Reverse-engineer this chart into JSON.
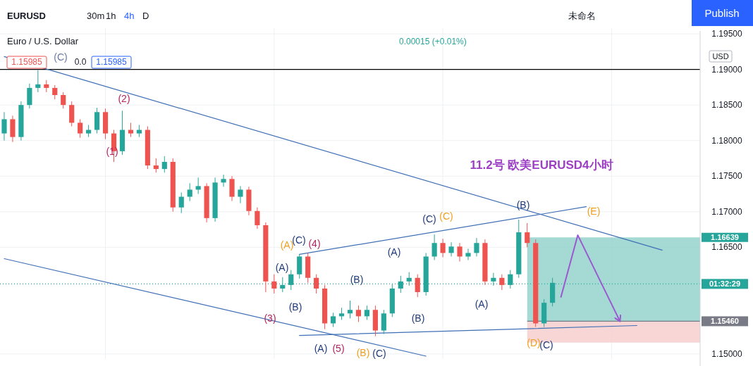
{
  "chart_data": {
    "type": "candlestick",
    "title": "11.2号 欧美EURUSD4小时",
    "categories": [
      null,
      null,
      null,
      null,
      null,
      null,
      null,
      null,
      null,
      null,
      null,
      null,
      null,
      null,
      null,
      null,
      null,
      null,
      null,
      null,
      null,
      null,
      null,
      null,
      null,
      null,
      null,
      null,
      null,
      null,
      null,
      null,
      null,
      null,
      null,
      null,
      null,
      null,
      null,
      null,
      null,
      null,
      null,
      null,
      null,
      null,
      null,
      null,
      null,
      null,
      null,
      null,
      null,
      null,
      null,
      null,
      null,
      null,
      null,
      null,
      null,
      null,
      null,
      null,
      null,
      null,
      null,
      null,
      null,
      null,
      null,
      null,
      null,
      null,
      null,
      null,
      null,
      null,
      null,
      null,
      null,
      null,
      null
    ],
    "ohlc": [
      [
        1.181,
        1.184,
        1.18,
        1.183
      ],
      [
        1.183,
        1.1835,
        1.1798,
        1.1805
      ],
      [
        1.1805,
        1.1855,
        1.18,
        1.185
      ],
      [
        1.185,
        1.188,
        1.1845,
        1.1874
      ],
      [
        1.1874,
        1.1899,
        1.1868,
        1.1879
      ],
      [
        1.1879,
        1.1885,
        1.1868,
        1.1874
      ],
      [
        1.1874,
        1.1878,
        1.1858,
        1.1864
      ],
      [
        1.1864,
        1.1868,
        1.1845,
        1.185
      ],
      [
        1.185,
        1.1855,
        1.182,
        1.1825
      ],
      [
        1.1825,
        1.183,
        1.1804,
        1.181
      ],
      [
        1.181,
        1.1822,
        1.1805,
        1.1815
      ],
      [
        1.1815,
        1.1846,
        1.181,
        1.184
      ],
      [
        1.184,
        1.1845,
        1.1802,
        1.181
      ],
      [
        1.181,
        1.1815,
        1.177,
        1.1785
      ],
      [
        1.1785,
        1.1842,
        1.178,
        1.1815
      ],
      [
        1.1815,
        1.1825,
        1.1805,
        1.181
      ],
      [
        1.181,
        1.1822,
        1.1805,
        1.1815
      ],
      [
        1.1815,
        1.182,
        1.176,
        1.1765
      ],
      [
        1.1765,
        1.1775,
        1.1755,
        1.176
      ],
      [
        1.176,
        1.1778,
        1.1755,
        1.177
      ],
      [
        1.177,
        1.1775,
        1.17,
        1.1706
      ],
      [
        1.1706,
        1.1727,
        1.1698,
        1.1721
      ],
      [
        1.1721,
        1.174,
        1.1715,
        1.1731
      ],
      [
        1.1731,
        1.1748,
        1.1725,
        1.1736
      ],
      [
        1.1736,
        1.174,
        1.1685,
        1.1691
      ],
      [
        1.1691,
        1.1748,
        1.1686,
        1.1741
      ],
      [
        1.1741,
        1.1752,
        1.1735,
        1.1746
      ],
      [
        1.1746,
        1.175,
        1.1715,
        1.1721
      ],
      [
        1.1721,
        1.1736,
        1.1712,
        1.1731
      ],
      [
        1.1731,
        1.1735,
        1.1695,
        1.1701
      ],
      [
        1.1701,
        1.1706,
        1.1676,
        1.1681
      ],
      [
        1.1681,
        1.1685,
        1.1587,
        1.1602
      ],
      [
        1.1602,
        1.1612,
        1.1585,
        1.1592
      ],
      [
        1.1592,
        1.1608,
        1.1587,
        1.1597
      ],
      [
        1.1597,
        1.1618,
        1.159,
        1.1612
      ],
      [
        1.1612,
        1.164,
        1.1606,
        1.1637
      ],
      [
        1.1637,
        1.1642,
        1.16,
        1.1607
      ],
      [
        1.1607,
        1.1612,
        1.1585,
        1.1592
      ],
      [
        1.1592,
        1.1597,
        1.1535,
        1.1543
      ],
      [
        1.1543,
        1.1558,
        1.1538,
        1.1553
      ],
      [
        1.1553,
        1.1565,
        1.1548,
        1.1557
      ],
      [
        1.1557,
        1.1575,
        1.155,
        1.1562
      ],
      [
        1.1562,
        1.1568,
        1.1545,
        1.1553
      ],
      [
        1.1553,
        1.1568,
        1.1548,
        1.1562
      ],
      [
        1.1562,
        1.1568,
        1.1525,
        1.1533
      ],
      [
        1.1533,
        1.1562,
        1.1528,
        1.1557
      ],
      [
        1.1557,
        1.1598,
        1.1552,
        1.1592
      ],
      [
        1.1592,
        1.161,
        1.1586,
        1.1602
      ],
      [
        1.1602,
        1.1615,
        1.1596,
        1.1607
      ],
      [
        1.1607,
        1.1612,
        1.158,
        1.1587
      ],
      [
        1.1587,
        1.1642,
        1.1582,
        1.1637
      ],
      [
        1.1637,
        1.1668,
        1.1632,
        1.1656
      ],
      [
        1.1656,
        1.1662,
        1.1636,
        1.1642
      ],
      [
        1.1642,
        1.1657,
        1.1637,
        1.1651
      ],
      [
        1.1651,
        1.1656,
        1.163,
        1.1637
      ],
      [
        1.1637,
        1.1648,
        1.1632,
        1.1642
      ],
      [
        1.1642,
        1.1663,
        1.1637,
        1.1656
      ],
      [
        1.1656,
        1.1661,
        1.1597,
        1.1602
      ],
      [
        1.1602,
        1.1614,
        1.1596,
        1.1607
      ],
      [
        1.1607,
        1.1612,
        1.159,
        1.1597
      ],
      [
        1.1597,
        1.1618,
        1.1592,
        1.1612
      ],
      [
        1.1612,
        1.1689,
        1.1607,
        1.1671
      ],
      [
        1.1671,
        1.1684,
        1.165,
        1.1656
      ],
      [
        1.1656,
        1.1661,
        1.1538,
        1.1543
      ],
      [
        1.1543,
        1.1577,
        1.1538,
        1.1572
      ],
      [
        1.1572,
        1.1607,
        1.1567,
        1.16
      ],
      null,
      null,
      null,
      null,
      null,
      null,
      null,
      null,
      null,
      null,
      null,
      null,
      null,
      null,
      null,
      null,
      null
    ],
    "series": [
      {
        "type": "line",
        "color": "#3f6fb5",
        "values": [
          1.1918,
          null,
          null,
          null,
          null,
          null,
          null,
          null,
          null,
          null,
          null,
          null,
          null,
          null,
          null,
          null,
          null,
          null,
          null,
          null,
          null,
          null,
          null,
          null,
          null,
          null,
          null,
          null,
          null,
          null,
          null,
          null,
          null,
          null,
          null,
          null,
          null,
          null,
          null,
          null,
          null,
          null,
          null,
          null,
          null,
          null,
          null,
          null,
          null,
          null,
          null,
          null,
          null,
          null,
          null,
          null,
          null,
          null,
          null,
          null,
          null,
          null,
          null,
          null,
          null,
          null,
          null,
          null,
          null,
          null,
          null,
          null,
          null,
          null,
          null,
          null,
          null,
          null,
          1.1646,
          null,
          null,
          null,
          null
        ]
      },
      {
        "type": "line",
        "color": "#3f6fb5",
        "values": [
          1.1634,
          null,
          null,
          null,
          null,
          null,
          null,
          null,
          null,
          null,
          null,
          null,
          null,
          null,
          null,
          null,
          null,
          null,
          null,
          null,
          null,
          null,
          null,
          null,
          null,
          null,
          null,
          null,
          null,
          null,
          null,
          null,
          null,
          null,
          null,
          null,
          null,
          null,
          null,
          null,
          null,
          null,
          null,
          null,
          null,
          null,
          null,
          null,
          null,
          null,
          1.1497,
          null,
          null,
          null,
          null,
          null,
          null,
          null,
          null,
          null,
          null,
          null,
          null,
          null,
          null,
          null,
          null,
          null,
          null,
          null,
          null,
          null,
          null,
          null,
          null,
          null,
          null,
          null,
          null,
          null,
          null,
          null,
          null
        ]
      },
      {
        "type": "line",
        "color": "#3f6fb5",
        "values": [
          null,
          null,
          null,
          null,
          null,
          null,
          null,
          null,
          null,
          null,
          null,
          null,
          null,
          null,
          null,
          null,
          null,
          null,
          null,
          null,
          null,
          null,
          null,
          null,
          null,
          null,
          null,
          null,
          null,
          null,
          null,
          null,
          null,
          null,
          null,
          1.164,
          null,
          null,
          null,
          null,
          null,
          null,
          null,
          null,
          null,
          null,
          null,
          null,
          null,
          null,
          null,
          null,
          null,
          null,
          null,
          null,
          null,
          null,
          null,
          null,
          null,
          null,
          null,
          null,
          null,
          null,
          null,
          null,
          null,
          1.1707,
          null,
          null,
          null,
          null,
          null,
          null,
          null,
          null,
          null,
          null,
          null,
          null,
          null
        ]
      },
      {
        "type": "line",
        "color": "#3f6fb5",
        "values": [
          null,
          null,
          null,
          null,
          null,
          null,
          null,
          null,
          null,
          null,
          null,
          null,
          null,
          null,
          null,
          null,
          null,
          null,
          null,
          null,
          null,
          null,
          null,
          null,
          null,
          null,
          null,
          null,
          null,
          null,
          null,
          null,
          null,
          null,
          null,
          1.1526,
          null,
          null,
          null,
          null,
          null,
          null,
          null,
          null,
          null,
          null,
          null,
          null,
          null,
          null,
          null,
          null,
          null,
          null,
          null,
          null,
          null,
          null,
          null,
          null,
          null,
          null,
          null,
          null,
          null,
          null,
          null,
          null,
          null,
          null,
          null,
          null,
          null,
          null,
          null,
          1.154,
          null,
          null,
          null,
          null,
          null,
          null,
          null
        ]
      },
      {
        "type": "line",
        "color": "#9b59d0",
        "values": [
          null,
          null,
          null,
          null,
          null,
          null,
          null,
          null,
          null,
          null,
          null,
          null,
          null,
          null,
          null,
          null,
          null,
          null,
          null,
          null,
          null,
          null,
          null,
          null,
          null,
          null,
          null,
          null,
          null,
          null,
          null,
          null,
          null,
          null,
          null,
          null,
          null,
          null,
          null,
          null,
          null,
          null,
          null,
          null,
          null,
          null,
          null,
          null,
          null,
          null,
          null,
          null,
          null,
          null,
          null,
          null,
          null,
          null,
          null,
          null,
          null,
          null,
          null,
          null,
          null,
          null,
          1.158,
          null,
          1.1667,
          null,
          null,
          null,
          null,
          1.1546,
          null,
          null,
          null,
          null,
          null,
          null,
          null,
          null,
          null
        ]
      }
    ],
    "ylim": [
      1.1493,
      1.1958
    ],
    "yticks": [
      {
        "value": 1.15,
        "label": "1.15000"
      },
      {
        "value": 1.165,
        "label": "1.16500"
      },
      {
        "value": 1.17,
        "label": "1.17000"
      },
      {
        "value": 1.175,
        "label": "1.17500"
      },
      {
        "value": 1.18,
        "label": "1.18000"
      },
      {
        "value": 1.185,
        "label": "1.18500"
      },
      {
        "value": 1.19,
        "label": "1.19000"
      },
      {
        "value": 1.195,
        "label": "1.19500"
      }
    ],
    "grid": true,
    "bands": [
      {
        "axis": "y",
        "from": 1.1546,
        "to": 1.16639,
        "label": "1.16639",
        "color": "#8fd0c9"
      },
      {
        "axis": "y",
        "from": 1.1516,
        "to": 1.1546,
        "color": "#f8cccc"
      }
    ],
    "ref_lines": [
      {
        "axis": "y",
        "value": 1.19,
        "color": "#000000"
      },
      {
        "axis": "y",
        "value": 1.1546,
        "label": "1.15460",
        "color": "#787b86"
      },
      {
        "axis": "y",
        "value": 1.15985,
        "label": "01:32:29",
        "color": "#26a69a",
        "line_style": "dotted"
      }
    ],
    "annotations": [
      "EURUSD",
      "30m",
      "1h",
      "4h",
      "D",
      "未命名",
      "Publish",
      "Euro / U.S. Dollar",
      "1.15985",
      "0.0",
      "1.15985",
      "0.00015 (+0.01%)",
      "USD",
      "(C)",
      "(2)",
      "(1)",
      "(3)",
      "(4)",
      "(A)",
      "(C)",
      "(A)",
      "(B)",
      "(A)",
      "(5)",
      "(B)",
      "(C)",
      "(B)",
      "(A)",
      "(B)",
      "(C)",
      "(C)",
      "(A)",
      "(B)",
      "(E)",
      "(D)",
      "(C)"
    ]
  }
}
